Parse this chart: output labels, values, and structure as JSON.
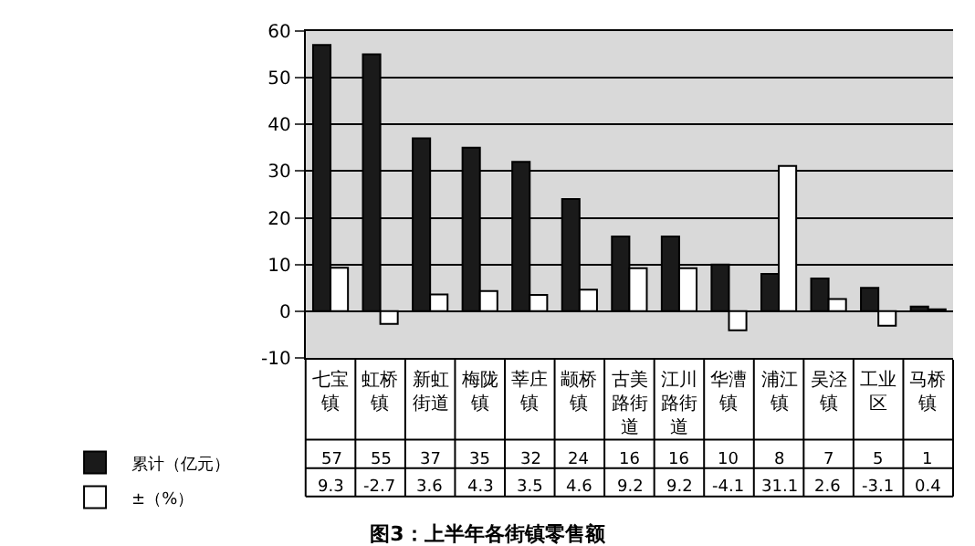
{
  "chart_data": {
    "type": "bar",
    "title": "图3：上半年各街镇零售额",
    "categories": [
      "七宝镇",
      "虹桥镇",
      "新虹街道",
      "梅陇镇",
      "莘庄镇",
      "颛桥镇",
      "古美路街道",
      "江川路街道",
      "华漕镇",
      "浦江镇",
      "吴泾镇",
      "工业区",
      "马桥镇"
    ],
    "series": [
      {
        "name": "累计（亿元）",
        "color": "#1a1a1a",
        "values": [
          57,
          55,
          37,
          35,
          32,
          24,
          16,
          16,
          10,
          8,
          7,
          5,
          1
        ]
      },
      {
        "name": "±（%）",
        "color": "#ffffff",
        "values": [
          9.3,
          -2.7,
          3.6,
          4.3,
          3.5,
          4.6,
          9.2,
          9.2,
          -4.1,
          31.1,
          2.6,
          -3.1,
          0.4
        ]
      }
    ],
    "ylim": [
      -10,
      60
    ],
    "yticks": [
      -10,
      0,
      10,
      20,
      30,
      40,
      50,
      60
    ],
    "grid": "y",
    "legend": "bottom left",
    "data_labels": true
  }
}
